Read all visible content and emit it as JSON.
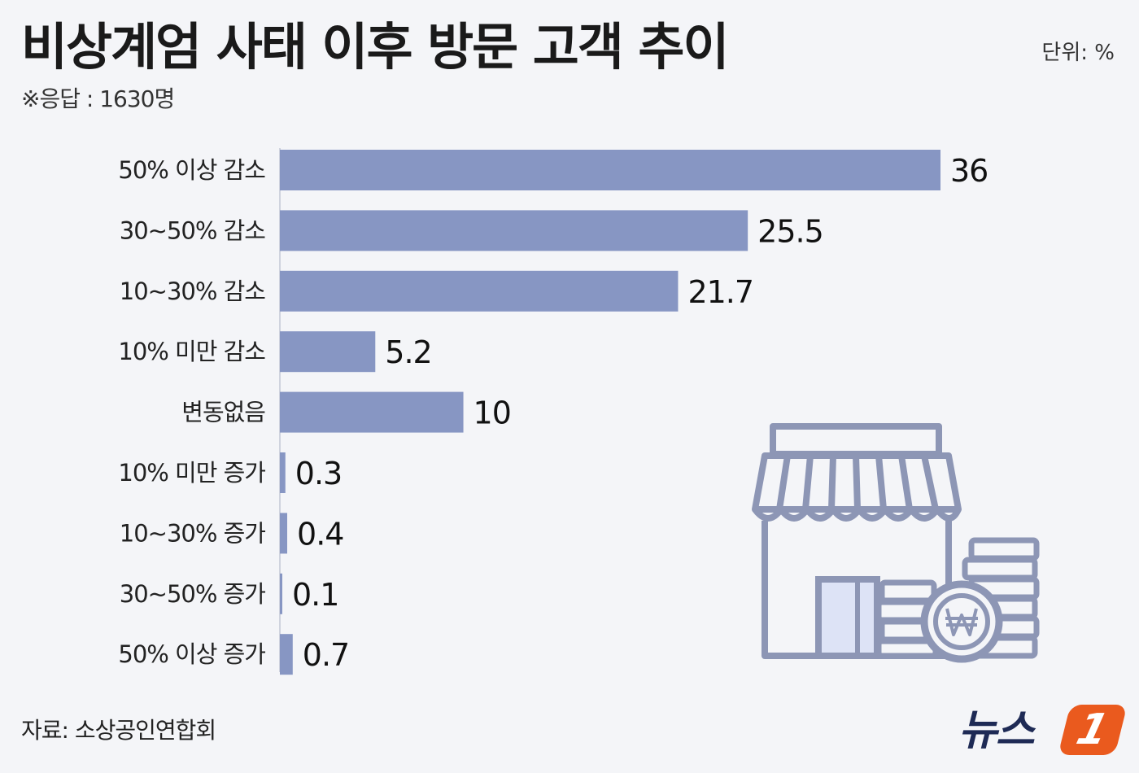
{
  "header": {
    "title": "비상계엄 사태 이후 방문 고객 추이",
    "note": "※응답 : 1630명",
    "unit": "단위: %"
  },
  "footer": {
    "source": "자료: 소상공인연합회",
    "logo_text": "뉴스",
    "logo_badge": "1"
  },
  "colors": {
    "bar": "#8796c3",
    "background": "#f4f5f8",
    "logo_accent": "#ea5a1e"
  },
  "illustration": {
    "icon": "store-with-won-coins-icon"
  },
  "chart_data": {
    "type": "bar",
    "orientation": "horizontal",
    "categories": [
      "50% 이상 감소",
      "30~50% 감소",
      "10~30% 감소",
      "10% 미만 감소",
      "변동없음",
      "10% 미만 증가",
      "10~30% 증가",
      "30~50% 증가",
      "50% 이상 증가"
    ],
    "values": [
      36,
      25.5,
      21.7,
      5.2,
      10,
      0.3,
      0.4,
      0.1,
      0.7
    ],
    "value_labels": [
      "36",
      "25.5",
      "21.7",
      "5.2",
      "10",
      "0.3",
      "0.4",
      "0.1",
      "0.7"
    ],
    "xlim": [
      0,
      36
    ],
    "grid": false,
    "legend": "none"
  }
}
